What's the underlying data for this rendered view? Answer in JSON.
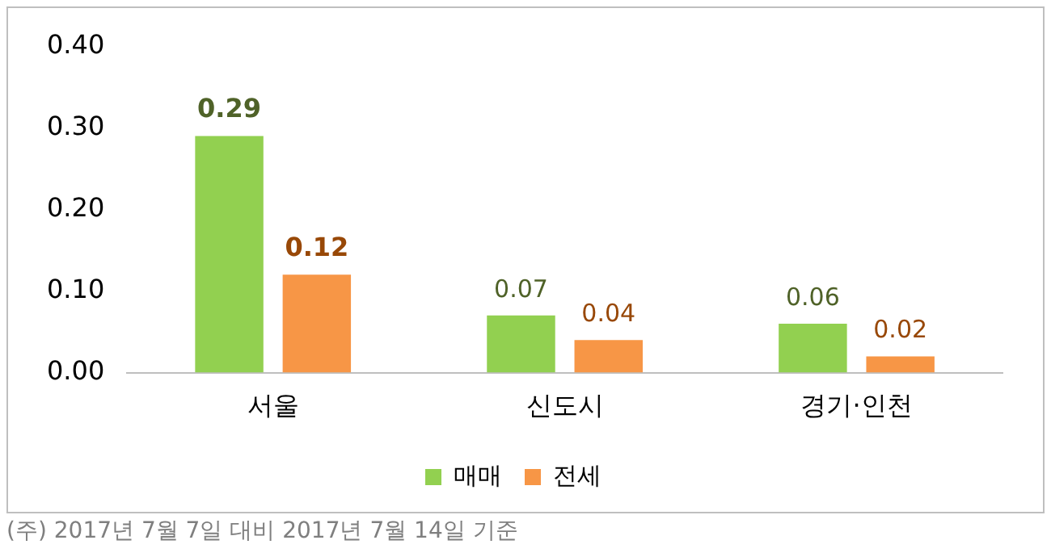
{
  "chart_data": {
    "type": "bar",
    "categories": [
      "서울",
      "신도시",
      "경기·인천"
    ],
    "series": [
      {
        "name": "매매",
        "color": "#92d050",
        "values": [
          0.29,
          0.07,
          0.06
        ]
      },
      {
        "name": "전세",
        "color": "#f79646",
        "values": [
          0.12,
          0.04,
          0.02
        ]
      }
    ],
    "ylim": [
      0,
      0.4
    ],
    "yticks": [
      {
        "value": 0,
        "label": "0.00"
      },
      {
        "value": 0.1,
        "label": "0.10"
      },
      {
        "value": 0.2,
        "label": "0.20"
      },
      {
        "value": 0.3,
        "label": "0.30"
      },
      {
        "value": 0.4,
        "label": "0.40"
      }
    ],
    "grid": false,
    "legend": "bottom",
    "data_labels": true,
    "annotations": [
      "(주) 2017년 7월 7일 대비 2017년 7월 14일 기준"
    ]
  }
}
